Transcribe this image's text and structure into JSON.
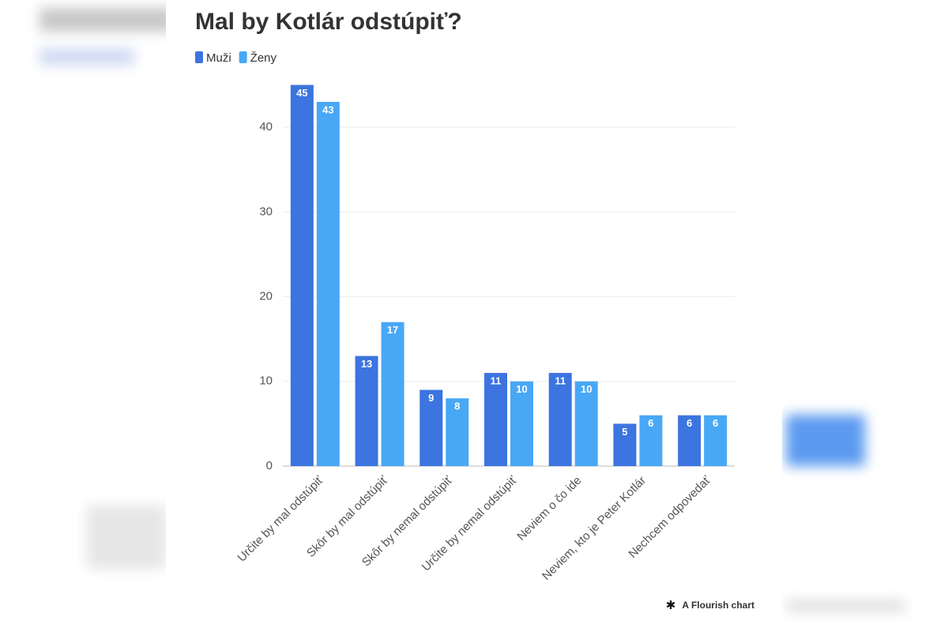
{
  "chart_data": {
    "type": "bar",
    "title": "Mal by Kotlár odstúpiť?",
    "categories": [
      "Určite by mal odstúpiť",
      "Skôr by mal odstúpiť",
      "Skôr by nemal odstúpiť",
      "Určite by nemal odstúpiť",
      "Neviem o čo ide",
      "Neviem, kto je Peter Kotlár",
      "Nechcem odpovedať"
    ],
    "series": [
      {
        "name": "Muži",
        "color": "#3c74e0",
        "values": [
          45,
          13,
          9,
          11,
          11,
          5,
          6
        ]
      },
      {
        "name": "Ženy",
        "color": "#48a8f6",
        "values": [
          43,
          17,
          8,
          10,
          10,
          6,
          6
        ]
      }
    ],
    "ylim": [
      0,
      45
    ],
    "yticks": [
      0,
      10,
      20,
      30,
      40
    ],
    "grid": true,
    "footer": "A Flourish chart"
  }
}
